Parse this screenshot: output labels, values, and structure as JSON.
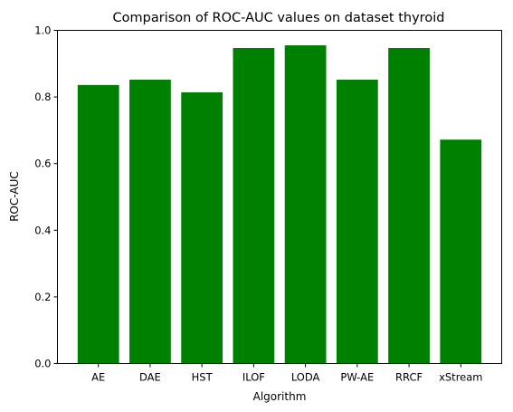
{
  "chart_data": {
    "type": "bar",
    "title": "Comparison of ROC-AUC values on dataset thyroid",
    "xlabel": "Algorithm",
    "ylabel": "ROC-AUC",
    "categories": [
      "AE",
      "DAE",
      "HST",
      "ILOF",
      "LODA",
      "PW-AE",
      "RRCF",
      "xStream"
    ],
    "values": [
      0.836,
      0.852,
      0.814,
      0.947,
      0.955,
      0.852,
      0.947,
      0.672
    ],
    "ylim": [
      0,
      1.0
    ],
    "yticks": [
      "0.0",
      "0.2",
      "0.4",
      "0.6",
      "0.8",
      "1.0"
    ],
    "bar_color": "#008000",
    "grid": false,
    "legend": "none"
  }
}
